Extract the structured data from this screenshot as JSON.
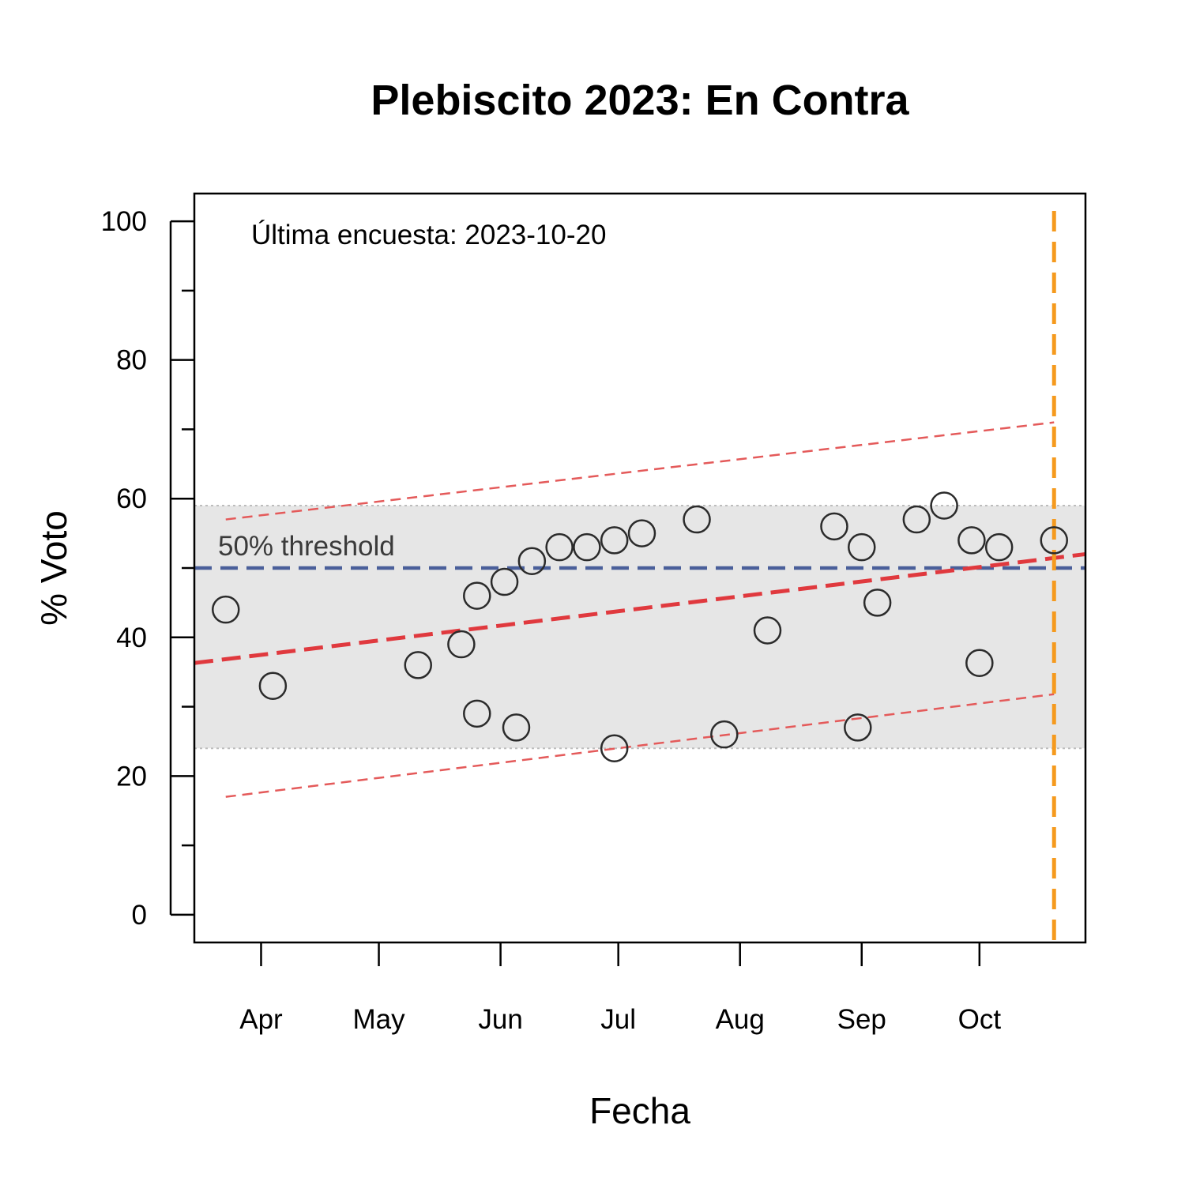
{
  "chart_data": {
    "type": "scatter",
    "title": "Plebiscito 2023: En Contra",
    "xlabel": "Fecha",
    "ylabel": "% Voto",
    "xlim": [
      "2023-03-15",
      "2023-10-28"
    ],
    "ylim": [
      -4,
      104
    ],
    "y_ticks": [
      0,
      20,
      40,
      60,
      80,
      100
    ],
    "y_minor_ticks": [
      10,
      30,
      50,
      70,
      90
    ],
    "x_ticks": [
      {
        "date": "2023-04-01",
        "label": "Apr"
      },
      {
        "date": "2023-05-01",
        "label": "May"
      },
      {
        "date": "2023-06-01",
        "label": "Jun"
      },
      {
        "date": "2023-07-01",
        "label": "Jul"
      },
      {
        "date": "2023-08-01",
        "label": "Aug"
      },
      {
        "date": "2023-09-01",
        "label": "Sep"
      },
      {
        "date": "2023-10-01",
        "label": "Oct"
      }
    ],
    "annotation": "Última encuesta: 2023-10-20",
    "range_band": {
      "min": 24,
      "max": 59,
      "color": "#e6e6e6"
    },
    "threshold": {
      "value": 50,
      "label": "50% threshold",
      "color": "#4a5f9a"
    },
    "last_poll_date": "2023-10-20",
    "last_poll_color": "#f59a1e",
    "trend": {
      "color": "#e0393e",
      "start": {
        "date": "2023-03-15",
        "value": 36.3
      },
      "end": {
        "date": "2023-10-28",
        "value": 52.0
      }
    },
    "bounds": {
      "color": "#e45a5a",
      "upper": {
        "start": {
          "date": "2023-03-23",
          "value": 57
        },
        "end": {
          "date": "2023-10-20",
          "value": 71
        }
      },
      "lower": {
        "start": {
          "date": "2023-03-23",
          "value": 17
        },
        "end": {
          "date": "2023-10-20",
          "value": 31.8
        }
      }
    },
    "points": [
      {
        "date": "2023-03-23",
        "value": 44
      },
      {
        "date": "2023-04-04",
        "value": 33
      },
      {
        "date": "2023-05-11",
        "value": 36
      },
      {
        "date": "2023-05-22",
        "value": 39
      },
      {
        "date": "2023-05-26",
        "value": 46
      },
      {
        "date": "2023-05-26",
        "value": 29
      },
      {
        "date": "2023-06-02",
        "value": 48
      },
      {
        "date": "2023-06-05",
        "value": 27
      },
      {
        "date": "2023-06-09",
        "value": 51
      },
      {
        "date": "2023-06-16",
        "value": 53
      },
      {
        "date": "2023-06-23",
        "value": 53
      },
      {
        "date": "2023-06-30",
        "value": 54
      },
      {
        "date": "2023-06-30",
        "value": 24
      },
      {
        "date": "2023-07-07",
        "value": 55
      },
      {
        "date": "2023-07-21",
        "value": 57
      },
      {
        "date": "2023-07-28",
        "value": 26
      },
      {
        "date": "2023-08-08",
        "value": 41
      },
      {
        "date": "2023-08-25",
        "value": 56
      },
      {
        "date": "2023-08-31",
        "value": 27
      },
      {
        "date": "2023-09-01",
        "value": 53
      },
      {
        "date": "2023-09-05",
        "value": 45
      },
      {
        "date": "2023-09-15",
        "value": 57
      },
      {
        "date": "2023-09-22",
        "value": 59
      },
      {
        "date": "2023-09-29",
        "value": 54
      },
      {
        "date": "2023-10-01",
        "value": 36.3
      },
      {
        "date": "2023-10-06",
        "value": 53
      },
      {
        "date": "2023-10-20",
        "value": 54
      }
    ]
  }
}
